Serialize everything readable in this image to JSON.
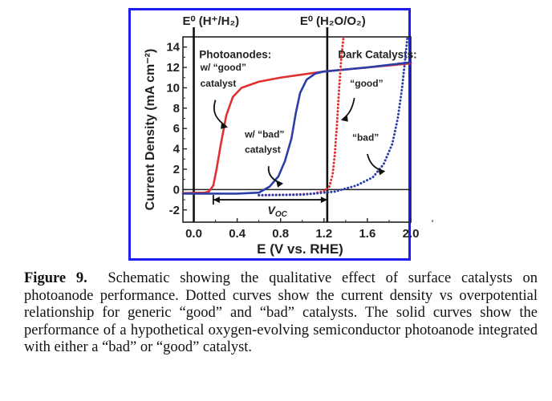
{
  "chart_data": {
    "type": "line",
    "xlabel": "E (V vs. RHE)",
    "ylabel": "Current Density (mA cm⁻²)",
    "xlim": [
      -0.1,
      2.0
    ],
    "ylim": [
      -3.2,
      15
    ],
    "x_ticks": [
      "0.0",
      "0.4",
      "0.8",
      "1.2",
      "1.6",
      "2.0"
    ],
    "y_ticks": [
      "14",
      "12",
      "10",
      "8",
      "6",
      "4",
      "2",
      "0",
      "-2"
    ],
    "reference_lines": [
      {
        "label": "E⁰ (H⁺/H₂)",
        "x": 0.0
      },
      {
        "label": "E⁰ (H₂O/O₂)",
        "x": 1.23
      }
    ],
    "section_labels": {
      "photoanodes": "Photoanodes:",
      "dark_catalysts": "Dark Catalysts:"
    },
    "annotations": {
      "good_photoanode": [
        "w/ “good”",
        "catalyst"
      ],
      "bad_photoanode": [
        "w/ “bad”",
        "catalyst"
      ],
      "good_catalyst": "“good”",
      "bad_catalyst": "“bad”",
      "voc": "V",
      "voc_sub": "OC",
      "voc_range": [
        0.18,
        1.23
      ]
    },
    "series": [
      {
        "name": "Photoanode w/ good catalyst",
        "style": "solid",
        "color": "#e03030",
        "points": [
          [
            -0.1,
            -0.35
          ],
          [
            0.1,
            -0.3
          ],
          [
            0.14,
            -0.2
          ],
          [
            0.18,
            0.4
          ],
          [
            0.21,
            2
          ],
          [
            0.25,
            4.5
          ],
          [
            0.3,
            7.3
          ],
          [
            0.36,
            9.1
          ],
          [
            0.44,
            10.0
          ],
          [
            0.6,
            10.6
          ],
          [
            0.8,
            11.0
          ],
          [
            1.0,
            11.3
          ],
          [
            1.2,
            11.6
          ],
          [
            1.6,
            12.0
          ],
          [
            2.0,
            12.4
          ]
        ]
      },
      {
        "name": "Photoanode w/ bad catalyst",
        "style": "solid",
        "color": "#2c3ea8",
        "points": [
          [
            -0.1,
            -0.4
          ],
          [
            0.4,
            -0.4
          ],
          [
            0.6,
            -0.3
          ],
          [
            0.7,
            0.3
          ],
          [
            0.78,
            1.3
          ],
          [
            0.84,
            2.8
          ],
          [
            0.9,
            5.0
          ],
          [
            0.94,
            7.5
          ],
          [
            0.98,
            9.5
          ],
          [
            1.04,
            10.8
          ],
          [
            1.12,
            11.4
          ],
          [
            1.2,
            11.6
          ],
          [
            1.4,
            11.8
          ],
          [
            1.6,
            12.0
          ],
          [
            2.0,
            12.5
          ]
        ]
      },
      {
        "name": "Dark catalyst good",
        "style": "dotted",
        "color": "#e03030",
        "points": [
          [
            0.6,
            -0.55
          ],
          [
            0.9,
            -0.5
          ],
          [
            1.1,
            -0.4
          ],
          [
            1.2,
            -0.15
          ],
          [
            1.25,
            0.3
          ],
          [
            1.28,
            1.5
          ],
          [
            1.3,
            3.5
          ],
          [
            1.32,
            6.5
          ],
          [
            1.34,
            10
          ],
          [
            1.36,
            13
          ],
          [
            1.38,
            15
          ]
        ]
      },
      {
        "name": "Dark catalyst bad",
        "style": "dotted",
        "color": "#2c3ea8",
        "points": [
          [
            0.6,
            -0.55
          ],
          [
            1.0,
            -0.5
          ],
          [
            1.3,
            -0.2
          ],
          [
            1.5,
            0.4
          ],
          [
            1.65,
            1.2
          ],
          [
            1.75,
            2.5
          ],
          [
            1.83,
            4.5
          ],
          [
            1.88,
            7.0
          ],
          [
            1.92,
            10
          ],
          [
            1.95,
            13
          ],
          [
            1.97,
            15
          ]
        ]
      }
    ]
  },
  "caption": {
    "label": "Figure 9.",
    "text": "Schematic showing the qualitative effect of surface catalysts on photoanode performance. Dotted curves show the current density vs overpotential relationship for generic “good” and “bad” catalysts. The solid curves show the performance of a hypothetical oxygen-evolving semiconductor photoanode integrated with either a “bad” or “good” catalyst."
  }
}
